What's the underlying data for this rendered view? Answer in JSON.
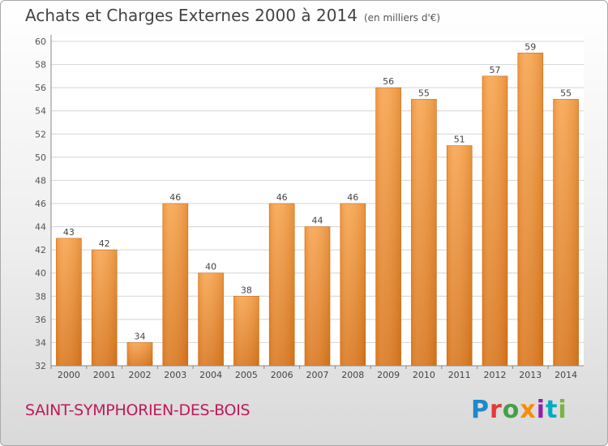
{
  "header": {
    "title": "Achats et Charges Externes 2000 à 2014",
    "unit": "(en milliers d'€)"
  },
  "footer": {
    "commune": "SAINT-SYMPHORIEN-DES-BOIS",
    "logo_text": "Proxiti",
    "logo_letters": [
      {
        "ch": "P",
        "color": "#1e88c9"
      },
      {
        "ch": "r",
        "color": "#e53935"
      },
      {
        "ch": "o",
        "color": "#43a047"
      },
      {
        "ch": "x",
        "color": "#fb8c00"
      },
      {
        "ch": "i",
        "color": "#8e24aa"
      },
      {
        "ch": "t",
        "color": "#00acc1"
      },
      {
        "ch": "i",
        "color": "#7cb342"
      }
    ]
  },
  "chart_data": {
    "type": "bar",
    "title": "Achats et Charges Externes 2000 à 2014",
    "subtitle": "(en milliers d'€)",
    "categories": [
      "2000",
      "2001",
      "2002",
      "2003",
      "2004",
      "2005",
      "2006",
      "2007",
      "2008",
      "2009",
      "2010",
      "2011",
      "2012",
      "2013",
      "2014"
    ],
    "values": [
      43,
      42,
      34,
      46,
      40,
      38,
      46,
      44,
      46,
      56,
      55,
      51,
      57,
      59,
      55
    ],
    "ylim": [
      32,
      60
    ],
    "yticks": [
      32,
      34,
      36,
      38,
      40,
      42,
      44,
      46,
      48,
      50,
      52,
      54,
      56,
      58,
      60
    ],
    "grid": true,
    "bar_color": "#f0922f",
    "bar_color_dark": "#d8741a"
  }
}
